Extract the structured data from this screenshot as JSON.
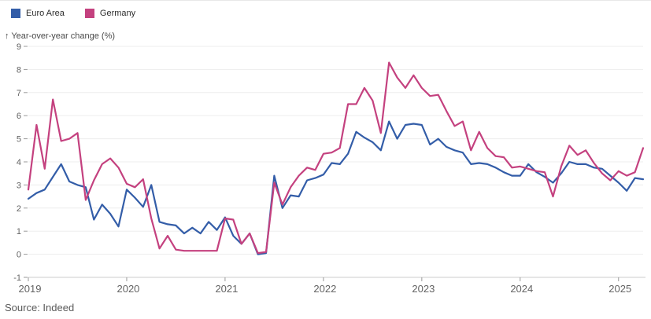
{
  "legend": [
    {
      "label": "Euro Area",
      "color": "#335da8"
    },
    {
      "label": "Germany",
      "color": "#c4417f"
    }
  ],
  "axis": {
    "y_title_arrow": "↑",
    "y_title": "Year-over-year change (%)",
    "y_ticks": [
      9,
      8,
      7,
      6,
      5,
      4,
      3,
      2,
      1,
      0,
      -1
    ],
    "x_ticks": [
      "2019",
      "2020",
      "2021",
      "2022",
      "2023",
      "2024",
      "2025"
    ]
  },
  "source": "Source: Indeed",
  "colors": {
    "euro_area": "#335da8",
    "germany": "#c4417f",
    "gridline": "#ededed",
    "axis_line": "#cccccc",
    "tick": "#9a9a9a"
  },
  "chart_data": {
    "type": "line",
    "title": "",
    "ylabel": "Year-over-year change (%)",
    "xlabel": "",
    "ylim": [
      -1,
      9
    ],
    "grid": true,
    "legend_position": "top-left",
    "x_start": "2019-01",
    "x_end": "2025-04",
    "x": [
      "2019-01",
      "2019-02",
      "2019-03",
      "2019-04",
      "2019-05",
      "2019-06",
      "2019-07",
      "2019-08",
      "2019-09",
      "2019-10",
      "2019-11",
      "2019-12",
      "2020-01",
      "2020-02",
      "2020-03",
      "2020-04",
      "2020-05",
      "2020-06",
      "2020-07",
      "2020-08",
      "2020-09",
      "2020-10",
      "2020-11",
      "2020-12",
      "2021-01",
      "2021-02",
      "2021-03",
      "2021-04",
      "2021-05",
      "2021-06",
      "2021-07",
      "2021-08",
      "2021-09",
      "2021-10",
      "2021-11",
      "2021-12",
      "2022-01",
      "2022-02",
      "2022-03",
      "2022-04",
      "2022-05",
      "2022-06",
      "2022-07",
      "2022-08",
      "2022-09",
      "2022-10",
      "2022-11",
      "2022-12",
      "2023-01",
      "2023-02",
      "2023-03",
      "2023-04",
      "2023-05",
      "2023-06",
      "2023-07",
      "2023-08",
      "2023-09",
      "2023-10",
      "2023-11",
      "2023-12",
      "2024-01",
      "2024-02",
      "2024-03",
      "2024-04",
      "2024-05",
      "2024-06",
      "2024-07",
      "2024-08",
      "2024-09",
      "2024-10",
      "2024-11",
      "2024-12",
      "2025-01",
      "2025-02",
      "2025-03",
      "2025-04"
    ],
    "series": [
      {
        "name": "Euro Area",
        "values": [
          2.4,
          2.65,
          2.8,
          3.35,
          3.9,
          3.15,
          3.0,
          2.9,
          1.5,
          2.15,
          1.75,
          1.2,
          2.8,
          2.45,
          2.05,
          3.0,
          1.4,
          1.3,
          1.25,
          0.9,
          1.15,
          0.9,
          1.4,
          1.05,
          1.6,
          0.8,
          0.45,
          0.9,
          0.0,
          0.05,
          3.4,
          2.0,
          2.55,
          2.5,
          3.2,
          3.3,
          3.45,
          3.95,
          3.9,
          4.35,
          5.3,
          5.05,
          4.85,
          4.5,
          5.75,
          5.0,
          5.6,
          5.65,
          5.6,
          4.75,
          5.0,
          4.65,
          4.5,
          4.4,
          3.9,
          3.95,
          3.9,
          3.75,
          3.55,
          3.4,
          3.4,
          3.9,
          3.55,
          3.35,
          3.1,
          3.5,
          4.0,
          3.9,
          3.9,
          3.75,
          3.7,
          3.4,
          3.1,
          2.75,
          3.3,
          3.25
        ]
      },
      {
        "name": "Germany",
        "values": [
          2.8,
          5.6,
          3.7,
          6.7,
          4.9,
          5.0,
          5.25,
          2.35,
          3.2,
          3.9,
          4.15,
          3.75,
          3.05,
          2.9,
          3.25,
          1.55,
          0.25,
          0.8,
          0.2,
          0.15,
          0.15,
          0.15,
          0.15,
          0.15,
          1.55,
          1.5,
          0.45,
          0.9,
          0.05,
          0.1,
          3.1,
          2.15,
          2.9,
          3.4,
          3.75,
          3.65,
          4.35,
          4.4,
          4.6,
          6.5,
          6.5,
          7.2,
          6.65,
          5.25,
          8.3,
          7.65,
          7.2,
          7.75,
          7.2,
          6.85,
          6.9,
          6.2,
          5.55,
          5.75,
          4.5,
          5.3,
          4.6,
          4.25,
          4.2,
          3.75,
          3.8,
          3.7,
          3.6,
          3.55,
          2.5,
          3.8,
          4.7,
          4.3,
          4.5,
          3.95,
          3.5,
          3.2,
          3.6,
          3.4,
          3.55,
          4.6
        ]
      }
    ]
  }
}
